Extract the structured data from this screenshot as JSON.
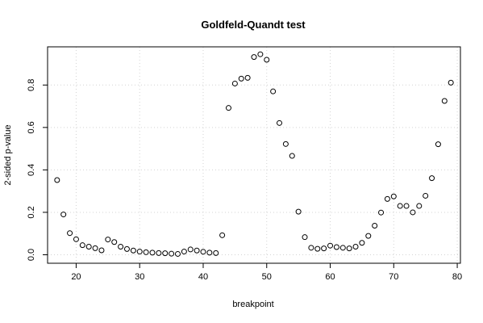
{
  "chart_data": {
    "type": "scatter",
    "title": "Goldfeld-Quandt test",
    "xlabel": "breakpoint",
    "ylabel": "2-sided p-value",
    "xlim": [
      15.5,
      80.5
    ],
    "ylim": [
      -0.04,
      0.98
    ],
    "x_ticks": [
      20,
      30,
      40,
      50,
      60,
      70,
      80
    ],
    "x_tick_labels": [
      "20",
      "30",
      "40",
      "50",
      "60",
      "70",
      "80"
    ],
    "y_ticks": [
      0.0,
      0.2,
      0.4,
      0.6,
      0.8
    ],
    "y_tick_labels": [
      "0.0",
      "0.2",
      "0.4",
      "0.6",
      "0.8"
    ],
    "grid": true,
    "marker": "open-circle",
    "x": [
      17,
      18,
      19,
      20,
      21,
      22,
      23,
      24,
      25,
      26,
      27,
      28,
      29,
      30,
      31,
      32,
      33,
      34,
      35,
      36,
      37,
      38,
      39,
      40,
      41,
      42,
      43,
      44,
      45,
      46,
      47,
      48,
      49,
      50,
      51,
      52,
      53,
      54,
      55,
      56,
      57,
      58,
      59,
      60,
      61,
      62,
      63,
      64,
      65,
      66,
      67,
      68,
      69,
      70,
      71,
      72,
      73,
      74,
      75,
      76,
      77,
      78,
      79
    ],
    "y": [
      0.352,
      0.19,
      0.102,
      0.073,
      0.045,
      0.038,
      0.031,
      0.021,
      0.072,
      0.06,
      0.038,
      0.027,
      0.02,
      0.015,
      0.012,
      0.01,
      0.008,
      0.007,
      0.005,
      0.004,
      0.015,
      0.025,
      0.02,
      0.014,
      0.01,
      0.008,
      0.092,
      0.692,
      0.807,
      0.83,
      0.834,
      0.932,
      0.945,
      0.919,
      0.77,
      0.621,
      0.522,
      0.466,
      0.203,
      0.083,
      0.033,
      0.028,
      0.03,
      0.043,
      0.036,
      0.033,
      0.03,
      0.038,
      0.056,
      0.089,
      0.137,
      0.199,
      0.263,
      0.275,
      0.23,
      0.23,
      0.2,
      0.23,
      0.278,
      0.361,
      0.521,
      0.725,
      0.811
    ]
  }
}
